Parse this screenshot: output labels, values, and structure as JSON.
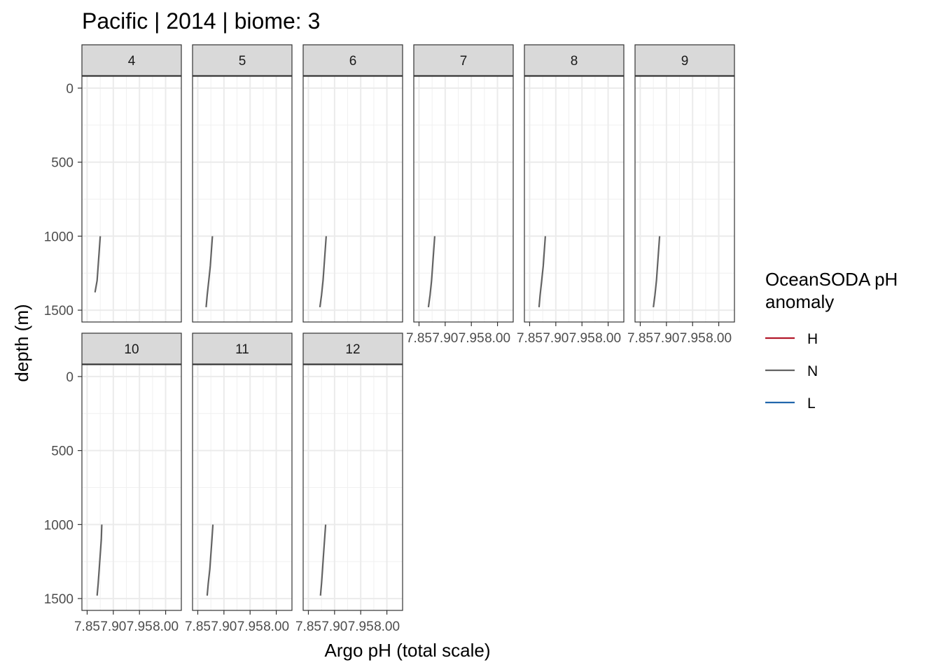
{
  "chart_data": {
    "type": "line",
    "title": "Pacific | 2014 | biome: 3",
    "xlabel": "Argo pH (total scale)",
    "ylabel": "depth (m)",
    "xlim": [
      7.84,
      8.03
    ],
    "ylim": [
      1580,
      -80
    ],
    "x_ticks": [
      "7.85",
      "7.90",
      "7.95",
      "8.00"
    ],
    "x_tick_values": [
      7.85,
      7.9,
      7.95,
      8.0
    ],
    "y_ticks": [
      "0",
      "500",
      "1000",
      "1500"
    ],
    "y_tick_values": [
      0,
      500,
      1000,
      1500
    ],
    "grid": true,
    "legend": {
      "title": [
        "OceanSODA pH",
        "anomaly"
      ],
      "position": "right",
      "entries": [
        {
          "label": "H",
          "color": "#b2182b"
        },
        {
          "label": "N",
          "color": "#636363"
        },
        {
          "label": "L",
          "color": "#2166ac"
        }
      ]
    },
    "panels": [
      {
        "facet": "4",
        "series": [
          {
            "name": "N",
            "points": [
              [
                7.875,
                1000
              ],
              [
                7.873,
                1100
              ],
              [
                7.871,
                1200
              ],
              [
                7.869,
                1300
              ],
              [
                7.865,
                1380
              ]
            ]
          }
        ]
      },
      {
        "facet": "5",
        "series": [
          {
            "name": "N",
            "points": [
              [
                7.878,
                1000
              ],
              [
                7.876,
                1100
              ],
              [
                7.874,
                1200
              ],
              [
                7.871,
                1300
              ],
              [
                7.868,
                1400
              ],
              [
                7.866,
                1480
              ]
            ]
          }
        ]
      },
      {
        "facet": "6",
        "series": [
          {
            "name": "N",
            "points": [
              [
                7.884,
                1000
              ],
              [
                7.882,
                1100
              ],
              [
                7.88,
                1200
              ],
              [
                7.878,
                1300
              ],
              [
                7.875,
                1400
              ],
              [
                7.872,
                1480
              ]
            ]
          }
        ]
      },
      {
        "facet": "7",
        "series": [
          {
            "name": "N",
            "points": [
              [
                7.88,
                1000
              ],
              [
                7.878,
                1100
              ],
              [
                7.876,
                1200
              ],
              [
                7.874,
                1300
              ],
              [
                7.871,
                1400
              ],
              [
                7.868,
                1480
              ]
            ]
          }
        ]
      },
      {
        "facet": "8",
        "series": [
          {
            "name": "N",
            "points": [
              [
                7.88,
                1000
              ],
              [
                7.878,
                1100
              ],
              [
                7.876,
                1200
              ],
              [
                7.873,
                1300
              ],
              [
                7.87,
                1400
              ],
              [
                7.868,
                1480
              ]
            ]
          }
        ]
      },
      {
        "facet": "9",
        "series": [
          {
            "name": "N",
            "points": [
              [
                7.887,
                1000
              ],
              [
                7.885,
                1100
              ],
              [
                7.883,
                1200
              ],
              [
                7.881,
                1300
              ],
              [
                7.878,
                1400
              ],
              [
                7.875,
                1480
              ]
            ]
          }
        ]
      },
      {
        "facet": "10",
        "series": [
          {
            "name": "N",
            "points": [
              [
                7.878,
                1000
              ],
              [
                7.877,
                1100
              ],
              [
                7.875,
                1200
              ],
              [
                7.873,
                1300
              ],
              [
                7.871,
                1400
              ],
              [
                7.869,
                1480
              ]
            ]
          }
        ]
      },
      {
        "facet": "11",
        "series": [
          {
            "name": "N",
            "points": [
              [
                7.879,
                1000
              ],
              [
                7.877,
                1100
              ],
              [
                7.875,
                1200
              ],
              [
                7.873,
                1300
              ],
              [
                7.87,
                1400
              ],
              [
                7.868,
                1480
              ]
            ]
          }
        ]
      },
      {
        "facet": "12",
        "series": [
          {
            "name": "N",
            "points": [
              [
                7.883,
                1000
              ],
              [
                7.881,
                1100
              ],
              [
                7.879,
                1200
              ],
              [
                7.877,
                1300
              ],
              [
                7.875,
                1400
              ],
              [
                7.873,
                1480
              ]
            ]
          }
        ]
      }
    ]
  }
}
